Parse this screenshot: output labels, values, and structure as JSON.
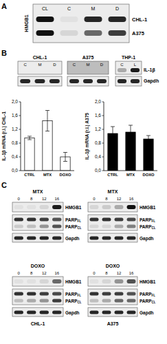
{
  "panel_labels": [
    "A",
    "B",
    "C"
  ],
  "panel_a": {
    "protein": "HMGB1",
    "lanes": [
      "CL",
      "C",
      "M",
      "D"
    ],
    "rows": [
      {
        "label": "CHL-1",
        "intensity": [
          1,
          0.05,
          0.9,
          0.9
        ]
      },
      {
        "label": "A375",
        "intensity": [
          1,
          0.1,
          0.6,
          0.8
        ]
      }
    ]
  },
  "panel_b": {
    "row_labels": [
      "IL-1β",
      "Gapdh"
    ],
    "groups": [
      {
        "cell": "CHL-1",
        "lanes": [
          "C",
          "M",
          "D"
        ],
        "intensity": [
          [
            0,
            0,
            0
          ],
          [
            0.9,
            0.9,
            0.9
          ]
        ]
      },
      {
        "cell": "A375",
        "lanes": [
          "C",
          "M",
          "D"
        ],
        "intensity": [
          [
            0,
            0,
            0
          ],
          [
            0.9,
            0.9,
            0.9
          ]
        ]
      },
      {
        "cell": "THP-1",
        "lanes": [
          "C",
          "L"
        ],
        "intensity": [
          [
            0.3,
            0.95
          ],
          [
            0.9,
            0.9
          ]
        ]
      }
    ]
  },
  "chart_data": [
    {
      "type": "bar",
      "y_label": "IL-1β mRNA (r.l.) CHL-1",
      "categories": [
        "CTRL",
        "MTX",
        "DOXO"
      ],
      "values": [
        0.95,
        1.45,
        0.4
      ],
      "errors": [
        0.05,
        0.3,
        0.13
      ],
      "color": "#ffffff",
      "ylim": [
        0,
        2
      ],
      "yticks": [
        {
          "value": 0,
          "label": "0,0"
        },
        {
          "value": 0.4,
          "label": "0,4"
        },
        {
          "value": 0.8,
          "label": "0,8"
        },
        {
          "value": 1.2,
          "label": "1,2"
        },
        {
          "value": 1.6,
          "label": "1,6"
        },
        {
          "value": 2,
          "label": "2,0"
        }
      ]
    },
    {
      "type": "bar",
      "y_label": "IL-1β mRNA (r.l.) A375",
      "categories": [
        "CTRL",
        "MTX",
        "DOXO"
      ],
      "values": [
        1.08,
        1.12,
        0.92
      ],
      "errors": [
        0.2,
        0.2,
        0.1
      ],
      "color": "#000000",
      "ylim": [
        0,
        2
      ],
      "yticks": [
        {
          "value": 0,
          "label": "0,0"
        },
        {
          "value": 0.4,
          "label": "0,4"
        },
        {
          "value": 0.8,
          "label": "0,8"
        },
        {
          "value": 1.2,
          "label": "1,2"
        },
        {
          "value": 1.6,
          "label": "1,6"
        },
        {
          "value": 2,
          "label": "2,0"
        }
      ]
    }
  ],
  "panel_c": {
    "lanes": [
      "0",
      "8",
      "12",
      "16"
    ],
    "row_labels": [
      {
        "text": "HMGB1"
      },
      {
        "text": "PARP",
        "sub": "FL"
      },
      {
        "text": "PARP",
        "sub": "CL"
      },
      {
        "text": "Gapdh"
      }
    ],
    "cells": [
      "CHL-1",
      "A375"
    ],
    "rows": [
      {
        "treatment": "MTX",
        "blots": [
          [
            [
              0.05,
              0.05,
              0.1,
              0.95
            ],
            [
              0.85,
              0.85,
              0.8,
              0.7
            ],
            [
              0.15,
              0.2,
              0.4,
              0.7
            ],
            [
              0.9,
              0.9,
              0.9,
              0.9
            ]
          ],
          [
            [
              0.1,
              0.15,
              0.3,
              1
            ],
            [
              0.85,
              0.85,
              0.8,
              0.75
            ],
            [
              0.1,
              0.1,
              0.3,
              0.5
            ],
            [
              0.9,
              0.9,
              0.9,
              0.9
            ]
          ]
        ]
      },
      {
        "treatment": "DOXO",
        "blots": [
          [
            [
              0.05,
              0.05,
              0.1,
              0.6
            ],
            [
              0.85,
              0.85,
              0.8,
              0.75
            ],
            [
              0.2,
              0.3,
              0.4,
              0.8
            ],
            [
              0.9,
              0.9,
              0.9,
              0.9
            ]
          ],
          [
            [
              0.05,
              0.1,
              0.4,
              0.7
            ],
            [
              0.85,
              0.8,
              0.8,
              0.7
            ],
            [
              0.2,
              0.3,
              0.6,
              0.6
            ],
            [
              0.9,
              0.9,
              0.9,
              0.9
            ]
          ]
        ]
      }
    ]
  }
}
